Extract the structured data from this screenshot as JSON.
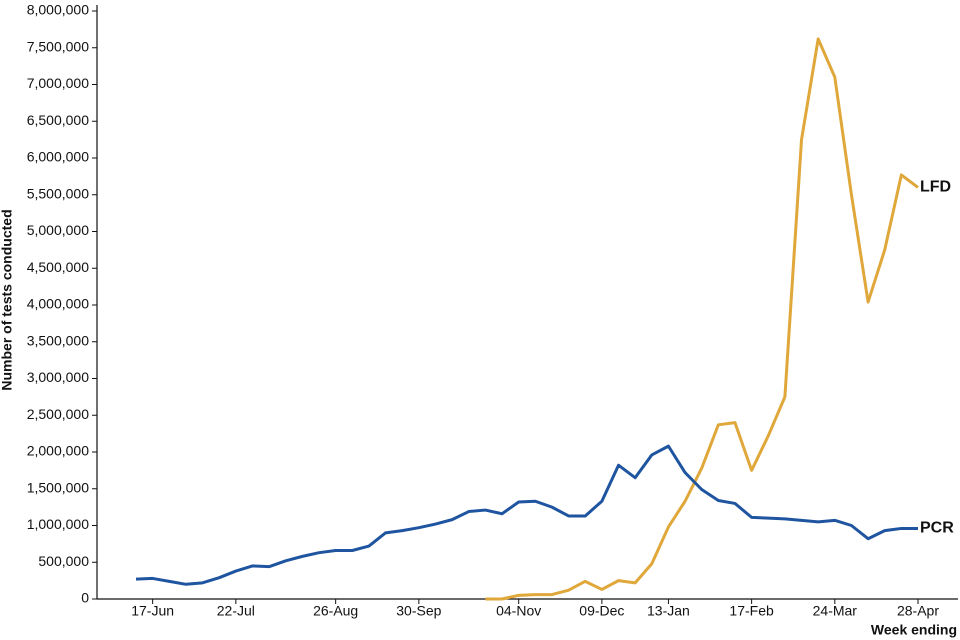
{
  "chart_data": {
    "type": "line",
    "y_label": "Number of tests conducted",
    "x_label": "Week ending",
    "categories": [
      null,
      "17-Jun",
      null,
      null,
      null,
      null,
      "22-Jul",
      null,
      null,
      null,
      null,
      null,
      "26-Aug",
      null,
      null,
      null,
      null,
      "30-Sep",
      null,
      null,
      null,
      null,
      null,
      "04-Nov",
      null,
      null,
      null,
      null,
      "09-Dec",
      null,
      null,
      null,
      "13-Jan",
      null,
      null,
      null,
      null,
      "17-Feb",
      null,
      null,
      null,
      null,
      "24-Mar",
      null,
      null,
      null,
      null,
      "28-Apr"
    ],
    "series": [
      {
        "name": "LFD",
        "color": "#e0a73a",
        "values": [
          null,
          null,
          null,
          null,
          null,
          null,
          null,
          null,
          null,
          null,
          null,
          null,
          null,
          null,
          null,
          null,
          null,
          null,
          null,
          null,
          null,
          0,
          0,
          50000,
          60000,
          60000,
          120000,
          240000,
          130000,
          250000,
          220000,
          480000,
          980000,
          1330000,
          1780000,
          2370000,
          2400000,
          1750000,
          2220000,
          2750000,
          6250000,
          7620000,
          7100000,
          5500000,
          4040000,
          4750000,
          5770000,
          5600000
        ]
      },
      {
        "name": "PCR",
        "color": "#1f55a0",
        "values": [
          270000,
          280000,
          240000,
          200000,
          220000,
          290000,
          380000,
          450000,
          440000,
          520000,
          580000,
          630000,
          660000,
          660000,
          720000,
          900000,
          930000,
          970000,
          1020000,
          1080000,
          1190000,
          1210000,
          1160000,
          1320000,
          1330000,
          1250000,
          1130000,
          1130000,
          1330000,
          1820000,
          1650000,
          1960000,
          2080000,
          1720000,
          1490000,
          1340000,
          1300000,
          1110000,
          1100000,
          1090000,
          1070000,
          1050000,
          1070000,
          1000000,
          820000,
          930000,
          960000,
          960000
        ]
      }
    ],
    "ylim": [
      0,
      8000000
    ],
    "yticks": [
      0,
      {
        "value": 500000,
        "label": "500,000"
      },
      {
        "value": 1000000,
        "label": "1,000,000"
      },
      {
        "value": 1500000,
        "label": "1,500,000"
      },
      {
        "value": 2000000,
        "label": "2,000,000"
      },
      {
        "value": 2500000,
        "label": "2,500,000"
      },
      {
        "value": 3000000,
        "label": "3,000,000"
      },
      {
        "value": 3500000,
        "label": "3,500,000"
      },
      {
        "value": 4000000,
        "label": "4,000,000"
      },
      {
        "value": 4500000,
        "label": "4,500,000"
      },
      {
        "value": 5000000,
        "label": "5,000,000"
      },
      {
        "value": 5500000,
        "label": "5,500,000"
      },
      {
        "value": 6000000,
        "label": "6,000,000"
      },
      {
        "value": 6500000,
        "label": "6,500,000"
      },
      {
        "value": 7000000,
        "label": "7,000,000"
      },
      {
        "value": 7500000,
        "label": "7,500,000"
      },
      {
        "value": 8000000,
        "label": "8,000,000"
      }
    ],
    "grid": false
  }
}
